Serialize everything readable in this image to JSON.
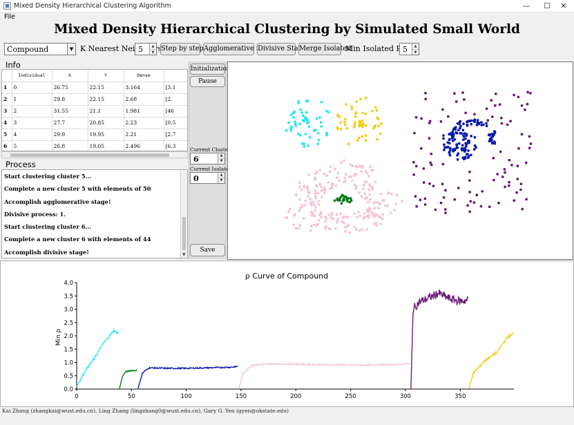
{
  "window": {
    "title": "Mixed Density Hierarchical Clustering Algorithm",
    "controls": [
      "—",
      "☐",
      "✕"
    ]
  },
  "menu": {
    "file": "File"
  },
  "header": {
    "title": "Mixed Density Hierarchical Clustering by Simulated Small World"
  },
  "toolbar": {
    "dataset": "Compound",
    "k_label": "K Nearest Neighbors",
    "k_value": "5",
    "step_button": "Step by step",
    "agglomerative_button": "Agglomerative Stage",
    "divisive_button": "Divisive Stage",
    "merge_button": "Merge Isolated",
    "min_isolated_label": "Min Isolated Points",
    "min_isolated_value": "5"
  },
  "info": {
    "title": "Info",
    "columns": [
      "Individual",
      "X",
      "Y",
      "Dense",
      ""
    ],
    "rows": [
      [
        "1",
        "0",
        "26.75",
        "22.15",
        "3.164",
        "[3.1"
      ],
      [
        "2",
        "1",
        "29.8",
        "22.15",
        "2.68",
        "[2."
      ],
      [
        "3",
        "2",
        "31.55",
        "21.1",
        "1.981",
        "[46"
      ],
      [
        "4",
        "3",
        "27.7",
        "20.85",
        "2.23",
        "[0.5"
      ],
      [
        "5",
        "4",
        "29.9",
        "19.95",
        "2.21",
        "[2.7"
      ],
      [
        "6",
        "5",
        "26.8",
        "19.05",
        "2.496",
        "[6.3"
      ]
    ]
  },
  "process": {
    "title": "Process",
    "lines": [
      "Start clustering cluster 5...",
      "Complete a new cluster 5 with elements of 50",
      "Accomplish agglomerative stage!",
      "Divisive process: 1.",
      "Start clustering cluster 6...",
      "Complete a new cluster 6 with elements of 44",
      "Accomplish divisive stage!"
    ]
  },
  "side": {
    "initialization_button": "Initialization",
    "pause_button": "Pause",
    "current_clusters_label": "Current Clusters",
    "current_clusters_value": "6",
    "current_isolated_label": "Current Isolated",
    "current_isolated_value": "0",
    "save_button": "Save"
  },
  "colors": {
    "cyan": "#2ee6f0",
    "gold": "#f2cc1a",
    "purple": "#6a1a7a",
    "blue": "#0a1aaa",
    "pink": "#f4c4d4",
    "green": "#0a7a1a",
    "axis": "#000000"
  },
  "chart_data": {
    "type": "line",
    "title": "ρ Curve of Compound",
    "xlabel": "",
    "ylabel": "Min ρ",
    "xlim": [
      0,
      399
    ],
    "ylim": [
      0,
      4.0
    ],
    "xticks": [
      "0",
      "50",
      "100",
      "150",
      "200",
      "250",
      "300",
      "350"
    ],
    "yticks": [
      "0.0",
      "0.5",
      "1.0",
      "1.5",
      "2.0",
      "2.5",
      "3.0",
      "3.5",
      "4.0"
    ],
    "grid": false,
    "series": [
      {
        "color": "cyan",
        "x_start": 0,
        "x_end": 38,
        "anchors": [
          [
            0,
            0.1
          ],
          [
            8,
            0.7
          ],
          [
            16,
            1.15
          ],
          [
            24,
            1.7
          ],
          [
            30,
            2.0
          ],
          [
            34,
            2.2
          ],
          [
            38,
            2.1
          ]
        ]
      },
      {
        "color": "green",
        "x_start": 39,
        "x_end": 55,
        "anchors": [
          [
            39,
            0.02
          ],
          [
            42,
            0.5
          ],
          [
            45,
            0.65
          ],
          [
            50,
            0.7
          ],
          [
            55,
            0.7
          ]
        ]
      },
      {
        "color": "blue",
        "x_start": 56,
        "x_end": 147,
        "anchors": [
          [
            56,
            0.02
          ],
          [
            60,
            0.6
          ],
          [
            66,
            0.8
          ],
          [
            80,
            0.78
          ],
          [
            100,
            0.78
          ],
          [
            120,
            0.8
          ],
          [
            140,
            0.82
          ],
          [
            147,
            0.85
          ]
        ]
      },
      {
        "color": "pink",
        "x_start": 148,
        "x_end": 304,
        "anchors": [
          [
            148,
            0.02
          ],
          [
            152,
            0.6
          ],
          [
            160,
            0.9
          ],
          [
            180,
            0.95
          ],
          [
            220,
            0.92
          ],
          [
            260,
            0.9
          ],
          [
            290,
            0.92
          ],
          [
            304,
            0.95
          ]
        ]
      },
      {
        "color": "purple",
        "x_start": 305,
        "x_end": 357,
        "anchors": [
          [
            305,
            0.02
          ],
          [
            307,
            3.0
          ],
          [
            312,
            3.25
          ],
          [
            320,
            3.4
          ],
          [
            330,
            3.6
          ],
          [
            340,
            3.4
          ],
          [
            350,
            3.3
          ],
          [
            357,
            3.35
          ]
        ]
      },
      {
        "color": "gold",
        "x_start": 358,
        "x_end": 399,
        "anchors": [
          [
            358,
            0.02
          ],
          [
            362,
            0.6
          ],
          [
            372,
            1.05
          ],
          [
            384,
            1.4
          ],
          [
            392,
            1.9
          ],
          [
            399,
            2.1
          ]
        ]
      }
    ]
  },
  "footer": {
    "authors": "Kai Zhang (zhangkai@wust.edu.cn), Ling Zhang (lingzhang0@wust.edu.cn), Gary G. Yen (gyen@okstate.edu)"
  }
}
